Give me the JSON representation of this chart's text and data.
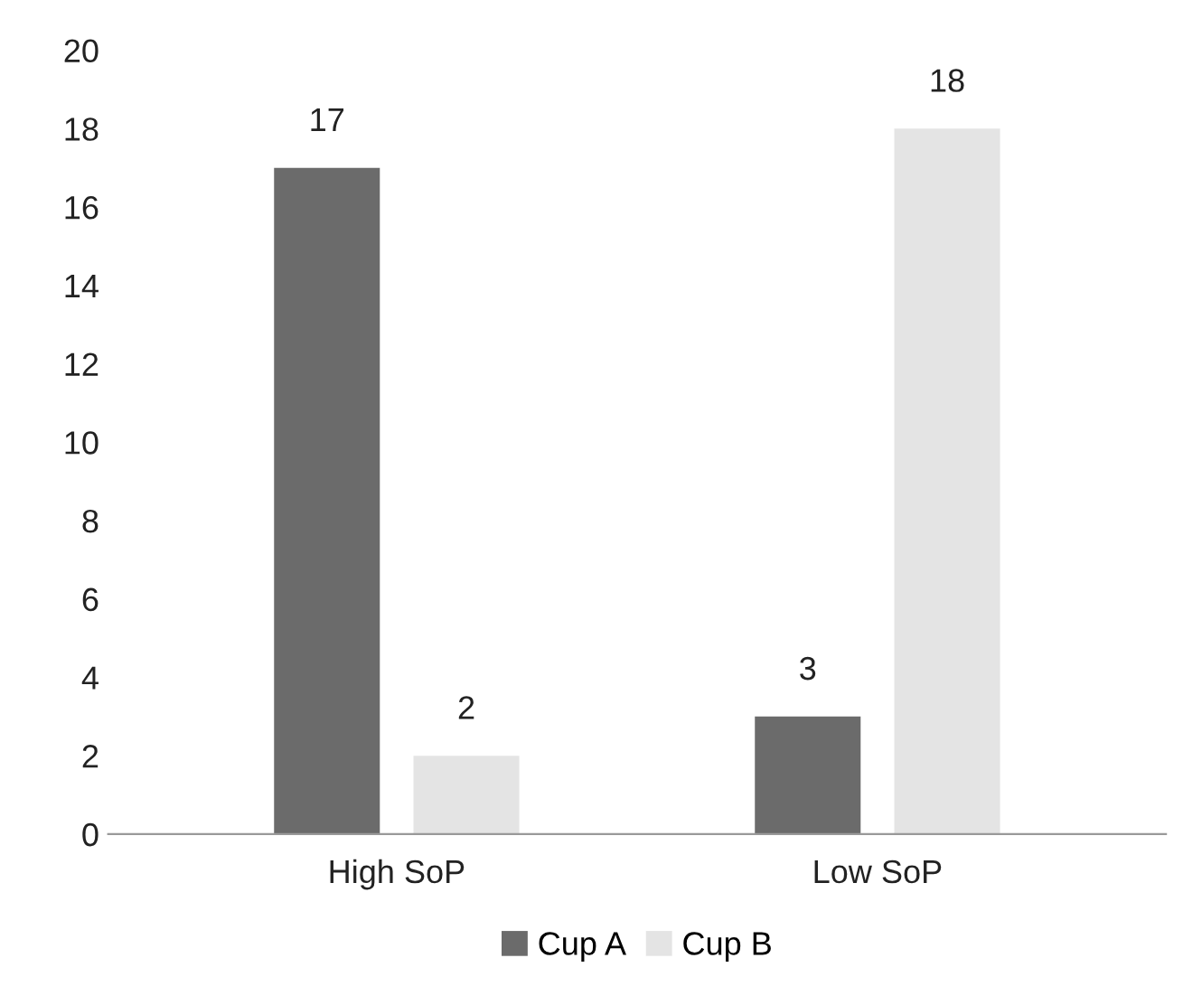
{
  "chart_data": {
    "type": "bar",
    "categories": [
      "High SoP",
      "Low SoP"
    ],
    "series": [
      {
        "name": "Cup A",
        "color": "#6b6b6b",
        "values": [
          17,
          3
        ]
      },
      {
        "name": "Cup B",
        "color": "#e4e4e4",
        "values": [
          2,
          18
        ]
      }
    ],
    "ylim": [
      0,
      20
    ],
    "yticks": [
      0,
      2,
      4,
      6,
      8,
      10,
      12,
      14,
      16,
      18,
      20
    ],
    "data_labels": true,
    "legend": "bottom",
    "grid": false
  }
}
